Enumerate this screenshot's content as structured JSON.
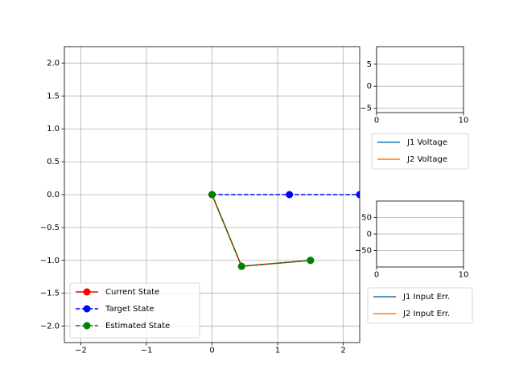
{
  "chart_data": [
    {
      "type": "line",
      "xlim": [
        -2.25,
        2.25
      ],
      "ylim": [
        -2.25,
        2.25
      ],
      "xticks": [
        -2,
        -1,
        0,
        1,
        2
      ],
      "xtick_labels": [
        "−2",
        "−1",
        "0",
        "1",
        "2"
      ],
      "yticks": [
        2.0,
        1.5,
        1.0,
        0.5,
        0.0,
        -0.5,
        -1.0,
        -1.5,
        -2.0
      ],
      "ytick_labels": [
        "2.0",
        "1.5",
        "1.0",
        "0.5",
        "0.0",
        "−0.5",
        "−1.0",
        "−1.5",
        "−2.0"
      ],
      "grid": true,
      "legend_position": "lower-left",
      "series": [
        {
          "name": "Current State",
          "color": "#ff0000",
          "linestyle": "solid",
          "marker": "circle",
          "x": [
            0,
            0.45,
            1.5
          ],
          "y": [
            0,
            -1.09,
            -1.0
          ]
        },
        {
          "name": "Target State",
          "color": "#0000ff",
          "linestyle": "dashed",
          "marker": "circle",
          "x": [
            0,
            1.18,
            2.25
          ],
          "y": [
            0,
            0,
            0
          ]
        },
        {
          "name": "Estimated State",
          "color": "#008000",
          "linestyle": "dashed",
          "marker": "circle",
          "x": [
            0,
            0.45,
            1.5
          ],
          "y": [
            0,
            -1.09,
            -1.0
          ]
        }
      ]
    },
    {
      "type": "line",
      "xlim": [
        0,
        10
      ],
      "ylim": [
        -6,
        9
      ],
      "xticks": [
        0,
        10
      ],
      "xtick_labels": [
        "0",
        "10"
      ],
      "yticks": [
        5,
        0,
        -5
      ],
      "ytick_labels": [
        "5",
        "0",
        "−5"
      ],
      "grid": true,
      "legend_position": "below",
      "series": [
        {
          "name": "J1 Voltage",
          "color": "#1f77b4",
          "x": [],
          "y": []
        },
        {
          "name": "J2 Voltage",
          "color": "#ff7f0e",
          "x": [],
          "y": []
        }
      ]
    },
    {
      "type": "line",
      "xlim": [
        0,
        10
      ],
      "ylim": [
        -100,
        100
      ],
      "xticks": [
        0,
        10
      ],
      "xtick_labels": [
        "0",
        "10"
      ],
      "yticks": [
        50,
        0,
        -50
      ],
      "ytick_labels": [
        "50",
        "0",
        "−50"
      ],
      "grid": true,
      "legend_position": "below",
      "series": [
        {
          "name": "J1 Input Err.",
          "color": "#1f77b4",
          "x": [],
          "y": []
        },
        {
          "name": "J2 Input Err.",
          "color": "#ff7f0e",
          "x": [],
          "y": []
        }
      ]
    }
  ]
}
